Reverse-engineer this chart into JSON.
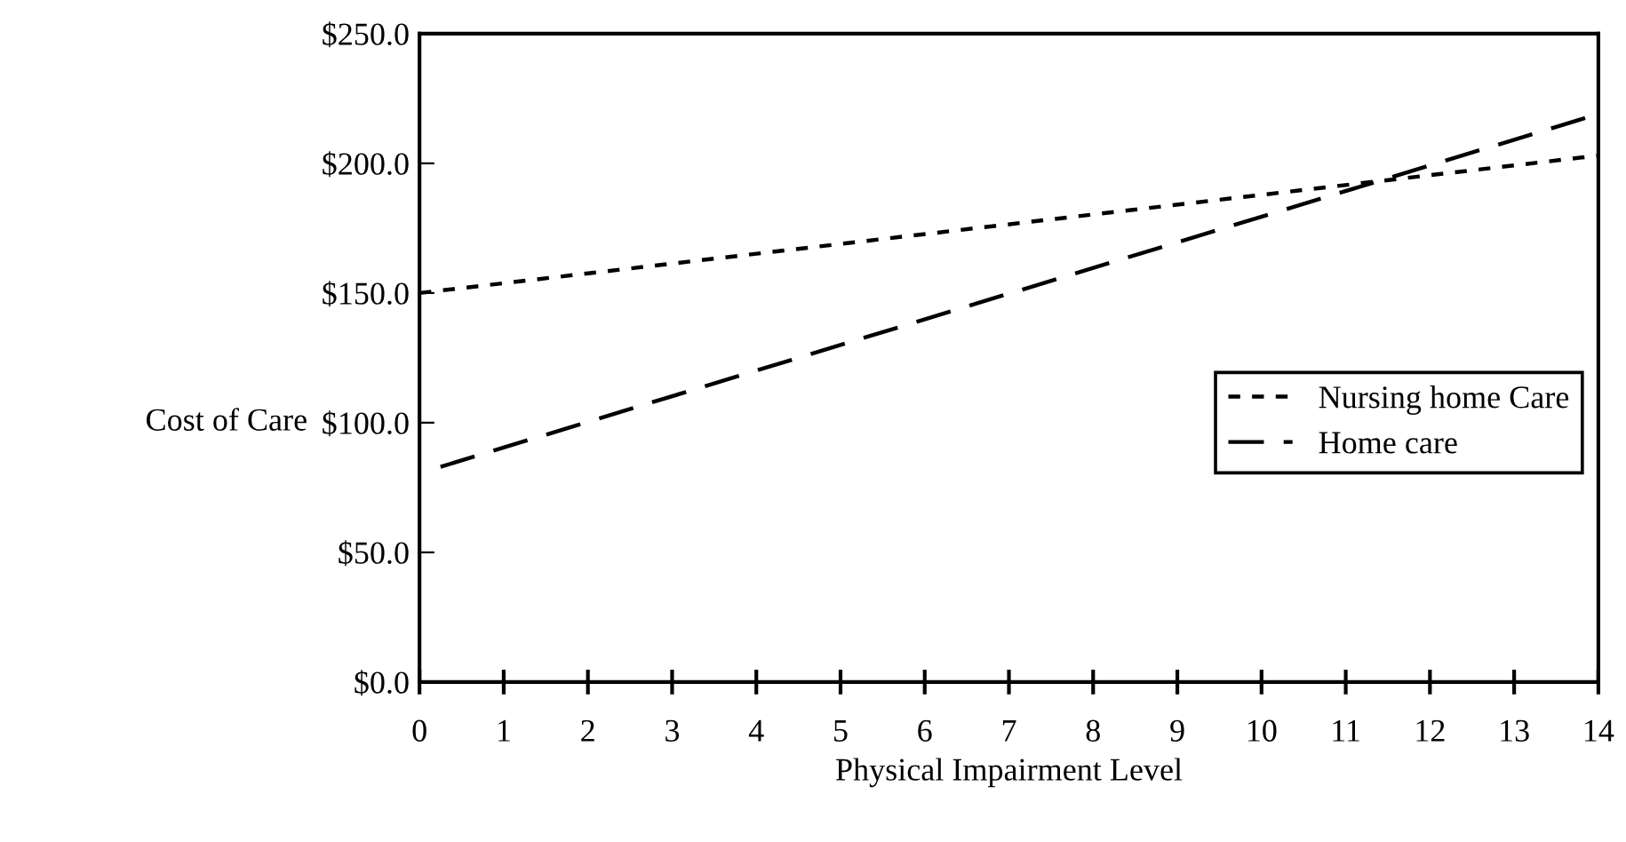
{
  "chart_data": {
    "type": "line",
    "xlabel": "Physical Impairment Level",
    "ylabel": "Cost of Care",
    "xlim": [
      0,
      14
    ],
    "xticks": [
      0,
      1,
      2,
      3,
      4,
      5,
      6,
      7,
      8,
      9,
      10,
      11,
      12,
      13,
      14
    ],
    "ylim": [
      0,
      250
    ],
    "yticks": [
      {
        "value": 0,
        "label": "$0.0"
      },
      {
        "value": 50,
        "label": "$50.0"
      },
      {
        "value": 100,
        "label": "$100.0"
      },
      {
        "value": 150,
        "label": "$150.0"
      },
      {
        "value": 200,
        "label": "$200.0"
      },
      {
        "value": 250,
        "label": "$250.0"
      }
    ],
    "series": [
      {
        "name": "Nursing home Care",
        "color": "#000000",
        "x": [
          0,
          14
        ],
        "values": [
          150,
          203
        ],
        "line_style": "dotted"
      },
      {
        "name": "Home care",
        "color": "#000000",
        "x": [
          0.25,
          14
        ],
        "values": [
          83,
          219
        ],
        "line_style": "dashed"
      }
    ],
    "grid": false,
    "legend": "right",
    "marker": "none"
  }
}
